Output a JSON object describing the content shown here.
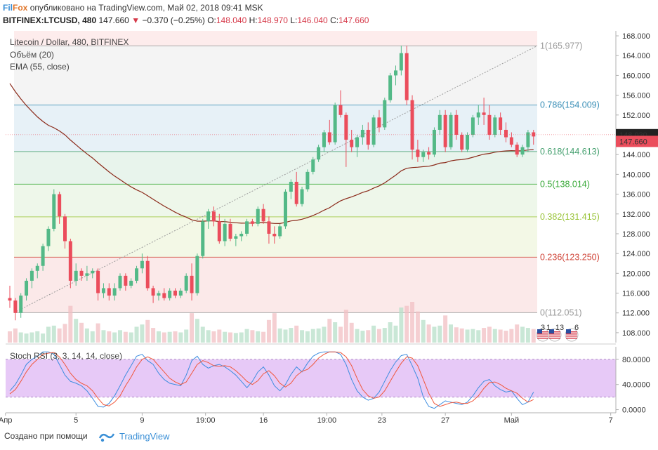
{
  "header": {
    "brand_fil": "Fil",
    "brand_fox": "Fox",
    "published": "опубликовано на TradingView.com, Май 02, 2018 09:41 MSK",
    "symbol": "BITFINEX:LTCUSD, 480",
    "last": "147.660",
    "arrow": "▼",
    "change": "−0.370 (−0.25%)",
    "o_label": "O:",
    "o_value": "148.040",
    "h_label": "H:",
    "h_value": "148.970",
    "l_label": "L:",
    "l_value": "146.040",
    "c_label": "C:",
    "c_value": "147.660"
  },
  "legend": {
    "title": "Litecoin / Dollar, 480, BITFINEX",
    "volume": "Объём (20)",
    "ema": "EMA (55, close)",
    "stoch": "Stoch RSI (3, 3, 14, 14, close)"
  },
  "footer": {
    "created_with": "Создано при помощи",
    "tv_name": "TradingView"
  },
  "colors": {
    "up": "#53b987",
    "down": "#eb4d5c",
    "ema": "#8b2a1a",
    "stoch_k": "#3d8de0",
    "stoch_d": "#f0573c",
    "stoch_band": "#e7c9f7"
  },
  "chart_data": {
    "type": "candlestick",
    "price_axis": {
      "ticks": [
        "168.000",
        "164.000",
        "160.000",
        "156.000",
        "152.000",
        "148.000",
        "144.000",
        "140.000",
        "136.000",
        "132.000",
        "128.000",
        "124.000",
        "120.000",
        "116.000",
        "112.000",
        "108.000"
      ],
      "range": [
        106,
        169
      ],
      "last_price_label": "147.660",
      "crosshair_label": "148.030"
    },
    "stoch_axis": {
      "ticks": [
        "80.0000",
        "40.0000",
        "0.0000"
      ],
      "range": [
        -5,
        100
      ]
    },
    "time_axis": [
      "Апр",
      "5",
      "9",
      "19:00",
      "16",
      "19:00",
      "23",
      "27",
      "Май",
      "7"
    ],
    "fibonacci": [
      {
        "label": "1(165.977)",
        "price": 165.977,
        "color": "#999999"
      },
      {
        "label": "0.786(154.009)",
        "price": 154.009,
        "color": "#3a8fb7"
      },
      {
        "label": "0.618(144.613)",
        "price": 144.613,
        "color": "#45a06f"
      },
      {
        "label": "0.5(138.014)",
        "price": 138.014,
        "color": "#3aaa3a"
      },
      {
        "label": "0.382(131.415)",
        "price": 131.415,
        "color": "#9ac43a"
      },
      {
        "label": "0.236(123.250)",
        "price": 123.25,
        "color": "#d0463a"
      },
      {
        "label": "0(112.051)",
        "price": 112.051,
        "color": "#999999"
      }
    ],
    "events": [
      "3",
      "1",
      "13",
      "6"
    ],
    "candles": [
      [
        115,
        117.5,
        113,
        114.5
      ],
      [
        114.5,
        115,
        110.5,
        112
      ],
      [
        112,
        116,
        111,
        115.5
      ],
      [
        115.5,
        119,
        114.5,
        118.5
      ],
      [
        118.5,
        121,
        117,
        120.5
      ],
      [
        120.5,
        122,
        119,
        121.5
      ],
      [
        121.5,
        126,
        120.5,
        125.5
      ],
      [
        125.5,
        129.5,
        124.5,
        129
      ],
      [
        129,
        137,
        128.5,
        136
      ],
      [
        136,
        136.5,
        130,
        131.5
      ],
      [
        131.5,
        132,
        125,
        126.5
      ],
      [
        126.5,
        127,
        117,
        118.5
      ],
      [
        118.5,
        122,
        117.5,
        120.5
      ],
      [
        120.5,
        121,
        118.5,
        119.5
      ],
      [
        119.5,
        121.5,
        118.5,
        120
      ],
      [
        120,
        121,
        119,
        120.5
      ],
      [
        120.5,
        121,
        114.5,
        116
      ],
      [
        116,
        118,
        115,
        117
      ],
      [
        117,
        118,
        114.5,
        115.5
      ],
      [
        115.5,
        118,
        114.5,
        117
      ],
      [
        117,
        120,
        116.5,
        119.5
      ],
      [
        119.5,
        120,
        116.5,
        117.5
      ],
      [
        117.5,
        119,
        117,
        118.5
      ],
      [
        118.5,
        121.5,
        118,
        121
      ],
      [
        121,
        124,
        120,
        122.5
      ],
      [
        122.5,
        123.5,
        116.5,
        117
      ],
      [
        117,
        117.5,
        114,
        115.5
      ],
      [
        115.5,
        116.5,
        114.5,
        116
      ],
      [
        116,
        117,
        114.5,
        115
      ],
      [
        115,
        117,
        114.5,
        116.5
      ],
      [
        116.5,
        117,
        115,
        115.5
      ],
      [
        115.5,
        117,
        115,
        116.5
      ],
      [
        116.5,
        120,
        116,
        119.5
      ],
      [
        119.5,
        122,
        114.5,
        116
      ],
      [
        116,
        124,
        115.5,
        123.5
      ],
      [
        123.5,
        131,
        123,
        130.5
      ],
      [
        130.5,
        133,
        129,
        132.5
      ],
      [
        132.5,
        133.5,
        129.5,
        130.5
      ],
      [
        130.5,
        132,
        126,
        126.5
      ],
      [
        126.5,
        131,
        125.5,
        130
      ],
      [
        130,
        131,
        126.5,
        127
      ],
      [
        127,
        128,
        125.5,
        127.5
      ],
      [
        127.5,
        128.5,
        126.5,
        128
      ],
      [
        128,
        131,
        127.5,
        130.5
      ],
      [
        130.5,
        131,
        129.5,
        130
      ],
      [
        130,
        133.5,
        129.5,
        133
      ],
      [
        133,
        134,
        130,
        130.5
      ],
      [
        130.5,
        131.5,
        126,
        128
      ],
      [
        128,
        129.5,
        126,
        127.5
      ],
      [
        127.5,
        130,
        127,
        129.5
      ],
      [
        129.5,
        137,
        129,
        136.5
      ],
      [
        136.5,
        139,
        135,
        138.5
      ],
      [
        138.5,
        140.5,
        133.5,
        134
      ],
      [
        134,
        137.5,
        133.5,
        137
      ],
      [
        137,
        141,
        136.5,
        140.5
      ],
      [
        140.5,
        143.5,
        140,
        143
      ],
      [
        143,
        146,
        142.5,
        145.5
      ],
      [
        145.5,
        149,
        144.5,
        148.5
      ],
      [
        148.5,
        151,
        146,
        146.5
      ],
      [
        146.5,
        154.5,
        146,
        154
      ],
      [
        154,
        157,
        151.5,
        152
      ],
      [
        152,
        152.5,
        141.5,
        147
      ],
      [
        147,
        149,
        144.5,
        145.5
      ],
      [
        145.5,
        148,
        143.5,
        147.5
      ],
      [
        147.5,
        150,
        146,
        149
      ],
      [
        149,
        150.5,
        145,
        146
      ],
      [
        146,
        152,
        145.5,
        151.5
      ],
      [
        151.5,
        153,
        148.5,
        149.5
      ],
      [
        149.5,
        155.5,
        149,
        155
      ],
      [
        155,
        160.5,
        154.5,
        160
      ],
      [
        160,
        162,
        158,
        161
      ],
      [
        161,
        166,
        160,
        164.5
      ],
      [
        164.5,
        166,
        154,
        155
      ],
      [
        155,
        156,
        143,
        145
      ],
      [
        145,
        147,
        142.5,
        143.5
      ],
      [
        143.5,
        145,
        142.5,
        144.5
      ],
      [
        144.5,
        145.5,
        143,
        144
      ],
      [
        144,
        149.5,
        143.5,
        149
      ],
      [
        149,
        153,
        148,
        152
      ],
      [
        152,
        153,
        144.5,
        145.5
      ],
      [
        145.5,
        152.5,
        145,
        152
      ],
      [
        152,
        153,
        147,
        148
      ],
      [
        148,
        148.5,
        144.5,
        145
      ],
      [
        145,
        148.5,
        144.5,
        148
      ],
      [
        148,
        152,
        147.5,
        151.5
      ],
      [
        151.5,
        154,
        150,
        152.5
      ],
      [
        152.5,
        155.5,
        150,
        152
      ],
      [
        152,
        154,
        147,
        148
      ],
      [
        148,
        152,
        147.5,
        151.5
      ],
      [
        151.5,
        152.5,
        148,
        149
      ],
      [
        149,
        150.5,
        146.5,
        147.5
      ],
      [
        147.5,
        148.5,
        145.5,
        146
      ],
      [
        146,
        146.5,
        143.5,
        144
      ],
      [
        144,
        146,
        143.5,
        145.5
      ],
      [
        145.5,
        149,
        144.5,
        148.5
      ],
      [
        148.5,
        149,
        146,
        147.66
      ]
    ],
    "volumes": [
      2.0,
      2.5,
      1.8,
      1.6,
      1.8,
      2.0,
      1.6,
      2.8,
      3.0,
      2.5,
      3.3,
      6.5,
      4.2,
      3.5,
      2.5,
      2.0,
      3.4,
      2.2,
      2.0,
      1.8,
      2.2,
      1.9,
      1.8,
      2.8,
      3.2,
      4.0,
      2.6,
      2.0,
      1.8,
      1.9,
      2.0,
      1.8,
      2.3,
      5.2,
      4.2,
      2.8,
      2.2,
      2.0,
      2.3,
      1.9,
      1.8,
      1.7,
      1.8,
      2.4,
      2.2,
      2.0,
      1.9,
      4.0,
      5.2,
      2.5,
      2.3,
      2.6,
      3.0,
      2.2,
      2.0,
      2.4,
      2.5,
      2.8,
      4.2,
      3.6,
      2.8,
      5.8,
      3.5,
      2.4,
      2.1,
      2.2,
      3.0,
      2.4,
      2.6,
      3.6,
      3.0,
      6.2,
      6.5,
      7.2,
      5.5,
      4.0,
      3.2,
      2.8,
      3.0,
      4.8,
      3.2,
      2.7,
      2.5,
      2.3,
      2.4,
      2.2,
      2.6,
      2.8,
      2.4,
      2.3,
      2.1,
      2.4,
      3.2,
      2.8,
      2.6,
      2.4
    ],
    "stoch_k": [
      30,
      40,
      55,
      72,
      80,
      85,
      92,
      92,
      88,
      72,
      55,
      45,
      42,
      38,
      30,
      18,
      5,
      4,
      10,
      22,
      38,
      55,
      70,
      85,
      88,
      78,
      72,
      58,
      48,
      42,
      40,
      38,
      55,
      78,
      85,
      72,
      66,
      70,
      72,
      68,
      62,
      55,
      45,
      35,
      45,
      60,
      68,
      55,
      38,
      30,
      40,
      56,
      68,
      60,
      74,
      85,
      90,
      92,
      92,
      92,
      88,
      72,
      48,
      30,
      20,
      15,
      18,
      28,
      45,
      62,
      76,
      86,
      88,
      70,
      50,
      20,
      5,
      2,
      8,
      14,
      12,
      10,
      8,
      12,
      22,
      35,
      45,
      48,
      38,
      32,
      28,
      30,
      18,
      8,
      12,
      28
    ],
    "stoch_d": [
      25,
      32,
      45,
      60,
      72,
      80,
      88,
      90,
      91,
      84,
      72,
      58,
      48,
      42,
      38,
      30,
      18,
      8,
      6,
      12,
      22,
      38,
      52,
      68,
      80,
      84,
      80,
      70,
      60,
      50,
      44,
      40,
      44,
      58,
      72,
      78,
      75,
      70,
      69,
      70,
      68,
      62,
      54,
      45,
      40,
      46,
      57,
      62,
      54,
      42,
      36,
      42,
      54,
      61,
      64,
      72,
      82,
      88,
      92,
      92,
      91,
      84,
      70,
      50,
      32,
      22,
      18,
      20,
      30,
      45,
      60,
      74,
      84,
      82,
      70,
      48,
      26,
      10,
      5,
      8,
      11,
      12,
      10,
      10,
      14,
      22,
      34,
      43,
      44,
      40,
      34,
      30,
      26,
      18,
      12,
      16
    ]
  }
}
